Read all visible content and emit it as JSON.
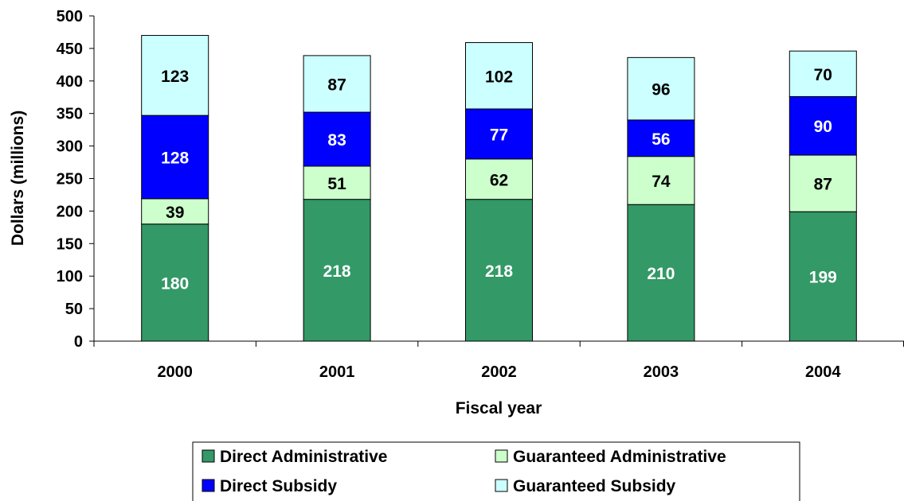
{
  "chart_data": {
    "type": "bar",
    "stacked": true,
    "title": "",
    "xlabel": "Fiscal year",
    "ylabel": "Dollars (millions)",
    "ylim": [
      0,
      500
    ],
    "yticks": [
      0,
      50,
      100,
      150,
      200,
      250,
      300,
      350,
      400,
      450,
      500
    ],
    "categories": [
      "2000",
      "2001",
      "2002",
      "2003",
      "2004"
    ],
    "series": [
      {
        "name": "Direct Administrative",
        "color": "#339966",
        "label_color": "#ffffff",
        "values": [
          180,
          218,
          218,
          210,
          199
        ]
      },
      {
        "name": "Guaranteed Administrative",
        "color": "#ccffcc",
        "label_color": "#000000",
        "values": [
          39,
          51,
          62,
          74,
          87
        ]
      },
      {
        "name": "Direct Subsidy",
        "color": "#0000ff",
        "label_color": "#ffffff",
        "values": [
          128,
          83,
          77,
          56,
          90
        ]
      },
      {
        "name": "Guaranteed Subsidy",
        "color": "#ccffff",
        "label_color": "#000000",
        "values": [
          123,
          87,
          102,
          96,
          70
        ]
      }
    ],
    "grid": false,
    "legend_position": "bottom"
  }
}
